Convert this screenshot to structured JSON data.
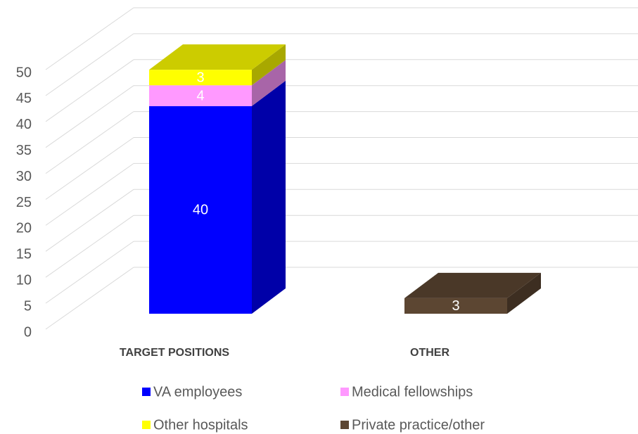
{
  "chart_data": {
    "type": "bar3d_stacked",
    "categories": [
      "TARGET POSITIONS",
      "OTHER"
    ],
    "series": [
      {
        "name": "VA employees",
        "color": "#0000ff",
        "values": [
          40,
          null
        ]
      },
      {
        "name": "Medical fellowships",
        "color": "#ff99ff",
        "values": [
          4,
          null
        ]
      },
      {
        "name": "Other hospitals",
        "color": "#ffff00",
        "values": [
          3,
          null
        ]
      },
      {
        "name": "Private practice/other",
        "color": "#5c4632",
        "values": [
          null,
          3
        ]
      }
    ],
    "ylim": [
      0,
      50
    ],
    "yticks": [
      0,
      5,
      10,
      15,
      20,
      25,
      30,
      35,
      40,
      45,
      50
    ],
    "grid": true
  }
}
